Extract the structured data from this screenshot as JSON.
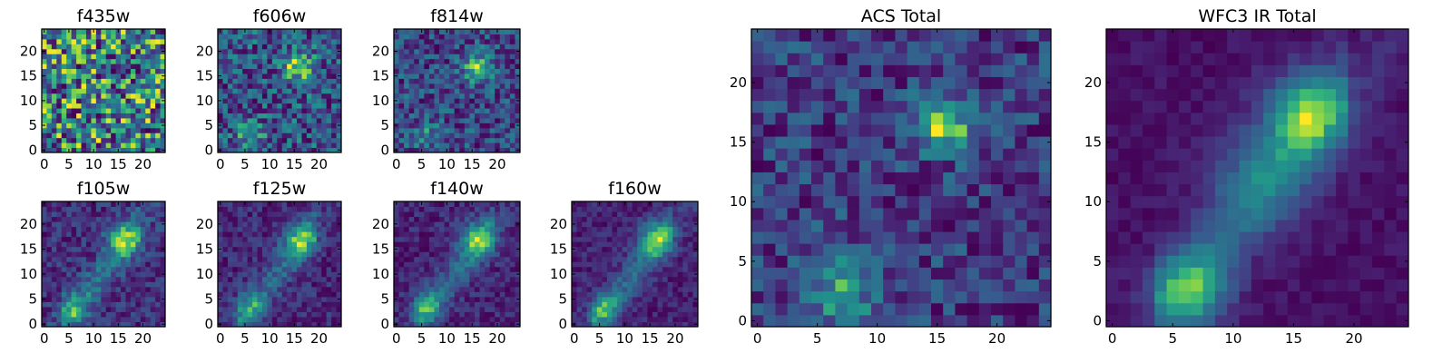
{
  "chart_data": [
    {
      "type": "heatmap",
      "title": "f435w",
      "grid_size": 25,
      "x_ticks": [
        0,
        5,
        10,
        15,
        20
      ],
      "y_ticks": [
        0,
        5,
        10,
        15,
        20
      ],
      "xlim": [
        0,
        24
      ],
      "ylim": [
        0,
        24
      ],
      "colormap": "viridis",
      "pattern": {
        "noise": 0.62,
        "contrast": 0.6,
        "base": 0.55,
        "blobs": [],
        "seed": 11
      }
    },
    {
      "type": "heatmap",
      "title": "f606w",
      "grid_size": 25,
      "x_ticks": [
        0,
        5,
        10,
        15,
        20
      ],
      "y_ticks": [
        0,
        5,
        10,
        15,
        20
      ],
      "xlim": [
        0,
        24
      ],
      "ylim": [
        0,
        24
      ],
      "colormap": "viridis",
      "pattern": {
        "noise": 0.5,
        "contrast": 0.55,
        "base": 0.48,
        "blobs": [
          {
            "x": 16,
            "y": 17,
            "sigma": 2.2,
            "amp": 0.45
          },
          {
            "x": 6,
            "y": 3,
            "sigma": 2.0,
            "amp": 0.25
          }
        ],
        "seed": 23
      }
    },
    {
      "type": "heatmap",
      "title": "f814w",
      "grid_size": 25,
      "x_ticks": [
        0,
        5,
        10,
        15,
        20
      ],
      "y_ticks": [
        0,
        5,
        10,
        15,
        20
      ],
      "xlim": [
        0,
        24
      ],
      "ylim": [
        0,
        24
      ],
      "colormap": "viridis",
      "pattern": {
        "noise": 0.5,
        "contrast": 0.55,
        "base": 0.45,
        "blobs": [
          {
            "x": 16,
            "y": 17,
            "sigma": 2.2,
            "amp": 0.5
          },
          {
            "x": 6,
            "y": 3,
            "sigma": 2.0,
            "amp": 0.3
          }
        ],
        "seed": 37
      }
    },
    {
      "type": "heatmap",
      "title": "f105w",
      "grid_size": 25,
      "x_ticks": [
        0,
        5,
        10,
        15,
        20
      ],
      "y_ticks": [
        0,
        5,
        10,
        15,
        20
      ],
      "xlim": [
        0,
        24
      ],
      "ylim": [
        0,
        24
      ],
      "colormap": "viridis",
      "pattern": {
        "noise": 0.35,
        "contrast": 0.6,
        "base": 0.3,
        "blobs": [
          {
            "x": 16,
            "y": 17,
            "sigma": 2.5,
            "amp": 0.6
          },
          {
            "x": 6,
            "y": 3,
            "sigma": 2.2,
            "amp": 0.4
          }
        ],
        "ridge": 0.35,
        "seed": 41
      }
    },
    {
      "type": "heatmap",
      "title": "f125w",
      "grid_size": 25,
      "x_ticks": [
        0,
        5,
        10,
        15,
        20
      ],
      "y_ticks": [
        0,
        5,
        10,
        15,
        20
      ],
      "xlim": [
        0,
        24
      ],
      "ylim": [
        0,
        24
      ],
      "colormap": "viridis",
      "pattern": {
        "noise": 0.33,
        "contrast": 0.6,
        "base": 0.28,
        "blobs": [
          {
            "x": 16,
            "y": 17,
            "sigma": 2.5,
            "amp": 0.65
          },
          {
            "x": 6,
            "y": 3,
            "sigma": 2.2,
            "amp": 0.45
          }
        ],
        "ridge": 0.35,
        "seed": 53
      }
    },
    {
      "type": "heatmap",
      "title": "f140w",
      "grid_size": 25,
      "x_ticks": [
        0,
        5,
        10,
        15,
        20
      ],
      "y_ticks": [
        0,
        5,
        10,
        15,
        20
      ],
      "xlim": [
        0,
        24
      ],
      "ylim": [
        0,
        24
      ],
      "colormap": "viridis",
      "pattern": {
        "noise": 0.3,
        "contrast": 0.6,
        "base": 0.25,
        "blobs": [
          {
            "x": 16,
            "y": 17,
            "sigma": 2.6,
            "amp": 0.7
          },
          {
            "x": 6,
            "y": 3,
            "sigma": 2.2,
            "amp": 0.5
          }
        ],
        "ridge": 0.4,
        "seed": 67
      }
    },
    {
      "type": "heatmap",
      "title": "f160w",
      "grid_size": 25,
      "x_ticks": [
        0,
        5,
        10,
        15,
        20
      ],
      "y_ticks": [
        0,
        5,
        10,
        15,
        20
      ],
      "xlim": [
        0,
        24
      ],
      "ylim": [
        0,
        24
      ],
      "colormap": "viridis",
      "pattern": {
        "noise": 0.3,
        "contrast": 0.6,
        "base": 0.22,
        "blobs": [
          {
            "x": 16,
            "y": 17,
            "sigma": 2.6,
            "amp": 0.75
          },
          {
            "x": 6,
            "y": 3,
            "sigma": 2.2,
            "amp": 0.55
          }
        ],
        "ridge": 0.45,
        "seed": 71
      }
    },
    {
      "type": "heatmap",
      "title": "ACS Total",
      "grid_size": 25,
      "x_ticks": [
        0,
        5,
        10,
        15,
        20
      ],
      "y_ticks": [
        0,
        5,
        10,
        15,
        20
      ],
      "xlim": [
        0,
        24
      ],
      "ylim": [
        0,
        24
      ],
      "colormap": "viridis",
      "pattern": {
        "noise": 0.28,
        "contrast": 0.55,
        "base": 0.5,
        "blobs": [
          {
            "x": 15.5,
            "y": 16.5,
            "sigma": 1.6,
            "amp": 0.45
          },
          {
            "x": 7,
            "y": 2.5,
            "sigma": 2.0,
            "amp": 0.3
          }
        ],
        "seed": 83
      }
    },
    {
      "type": "heatmap",
      "title": "WFC3 IR Total",
      "grid_size": 25,
      "x_ticks": [
        0,
        5,
        10,
        15,
        20
      ],
      "y_ticks": [
        0,
        5,
        10,
        15,
        20
      ],
      "xlim": [
        0,
        24
      ],
      "ylim": [
        0,
        24
      ],
      "colormap": "viridis",
      "pattern": {
        "noise": 0.12,
        "contrast": 0.6,
        "base": 0.2,
        "blobs": [
          {
            "x": 16,
            "y": 17.5,
            "sigma": 2.4,
            "amp": 0.8
          },
          {
            "x": 6.5,
            "y": 2.5,
            "sigma": 2.2,
            "amp": 0.7
          },
          {
            "x": 12,
            "y": 12,
            "sigma": 3.0,
            "amp": 0.35
          }
        ],
        "ridge": 0.35,
        "seed": 97
      }
    }
  ]
}
